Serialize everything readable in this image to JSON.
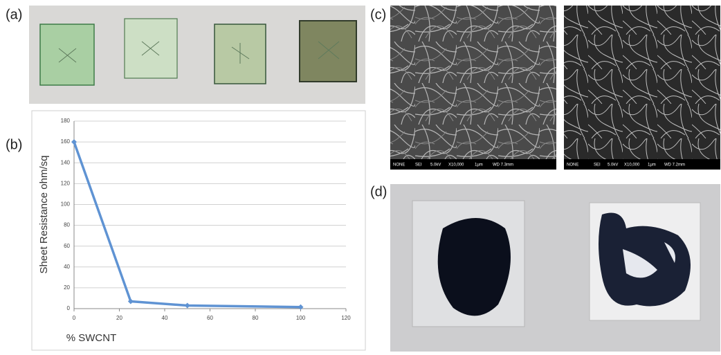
{
  "panel_labels": [
    "(a)",
    "(b)",
    "(c)",
    "(d)"
  ],
  "sem_bars": [
    {
      "mode": "NONE",
      "detector": "SEI",
      "voltage": "5.0kV",
      "magnification": "X10,000",
      "scale": "1μm",
      "wd": "WD 7.3mm"
    },
    {
      "mode": "NONE",
      "detector": "SEI",
      "voltage": "5.0kV",
      "magnification": "X10,000",
      "scale": "1μm",
      "wd": "WD 7.2mm"
    }
  ],
  "chart_data": {
    "type": "line",
    "x_label": "% SWCNT",
    "y_label": "Sheet Resistance ohm/sq",
    "x": [
      0,
      25,
      50,
      100
    ],
    "values": [
      160,
      7,
      3,
      1.5
    ],
    "color": "#5f93d3",
    "xlim": [
      0,
      120
    ],
    "xticks": [
      0,
      20,
      40,
      60,
      80,
      100,
      120
    ],
    "ylim": [
      0,
      180
    ],
    "yticks": [
      0,
      20,
      40,
      60,
      80,
      100,
      120,
      140,
      160,
      180
    ],
    "grid": true
  }
}
